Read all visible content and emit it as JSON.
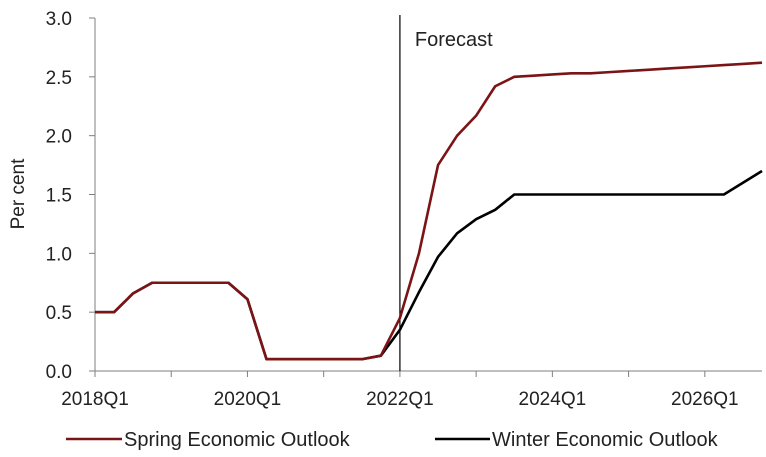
{
  "chart_data": {
    "type": "line",
    "title": "",
    "xlabel": "",
    "ylabel": "Per cent",
    "ylim": [
      0,
      3.0
    ],
    "y_ticks": [
      "0.0",
      "0.5",
      "1.0",
      "1.5",
      "2.0",
      "2.5",
      "3.0"
    ],
    "x_tick_labels": [
      "2018Q1",
      "2020Q1",
      "2022Q1",
      "2024Q1",
      "2026Q1"
    ],
    "x_start": "2018Q1",
    "x_end": "2026Q4",
    "grid": false,
    "legend": "bottom",
    "forecast_marker": {
      "x": "2022Q1",
      "label": "Forecast"
    },
    "x": [
      "2018Q1",
      "2018Q2",
      "2018Q3",
      "2018Q4",
      "2019Q1",
      "2019Q2",
      "2019Q3",
      "2019Q4",
      "2020Q1",
      "2020Q2",
      "2020Q3",
      "2020Q4",
      "2021Q1",
      "2021Q2",
      "2021Q3",
      "2021Q4",
      "2022Q1",
      "2022Q2",
      "2022Q3",
      "2022Q4",
      "2023Q1",
      "2023Q2",
      "2023Q3",
      "2023Q4",
      "2024Q1",
      "2024Q2",
      "2024Q3",
      "2024Q4",
      "2025Q1",
      "2025Q2",
      "2025Q3",
      "2025Q4",
      "2026Q1",
      "2026Q2",
      "2026Q3",
      "2026Q4"
    ],
    "series": [
      {
        "name": "Spring Economic Outlook",
        "color": "#7b1416",
        "values": [
          0.5,
          0.5,
          0.66,
          0.75,
          0.75,
          0.75,
          0.75,
          0.75,
          0.61,
          0.1,
          0.1,
          0.1,
          0.1,
          0.1,
          0.1,
          0.13,
          0.45,
          1.0,
          1.75,
          2.0,
          2.17,
          2.42,
          2.5,
          2.51,
          2.52,
          2.53,
          2.53,
          2.54,
          2.55,
          2.56,
          2.57,
          2.58,
          2.59,
          2.6,
          2.61,
          2.62
        ]
      },
      {
        "name": "Winter Economic Outlook",
        "color": "#000000",
        "values": [
          0.5,
          0.5,
          0.66,
          0.75,
          0.75,
          0.75,
          0.75,
          0.75,
          0.61,
          0.1,
          0.1,
          0.1,
          0.1,
          0.1,
          0.1,
          0.13,
          0.35,
          0.67,
          0.97,
          1.17,
          1.29,
          1.37,
          1.5,
          1.5,
          1.5,
          1.5,
          1.5,
          1.5,
          1.5,
          1.5,
          1.5,
          1.5,
          1.5,
          1.5,
          1.6,
          1.7
        ]
      }
    ]
  }
}
